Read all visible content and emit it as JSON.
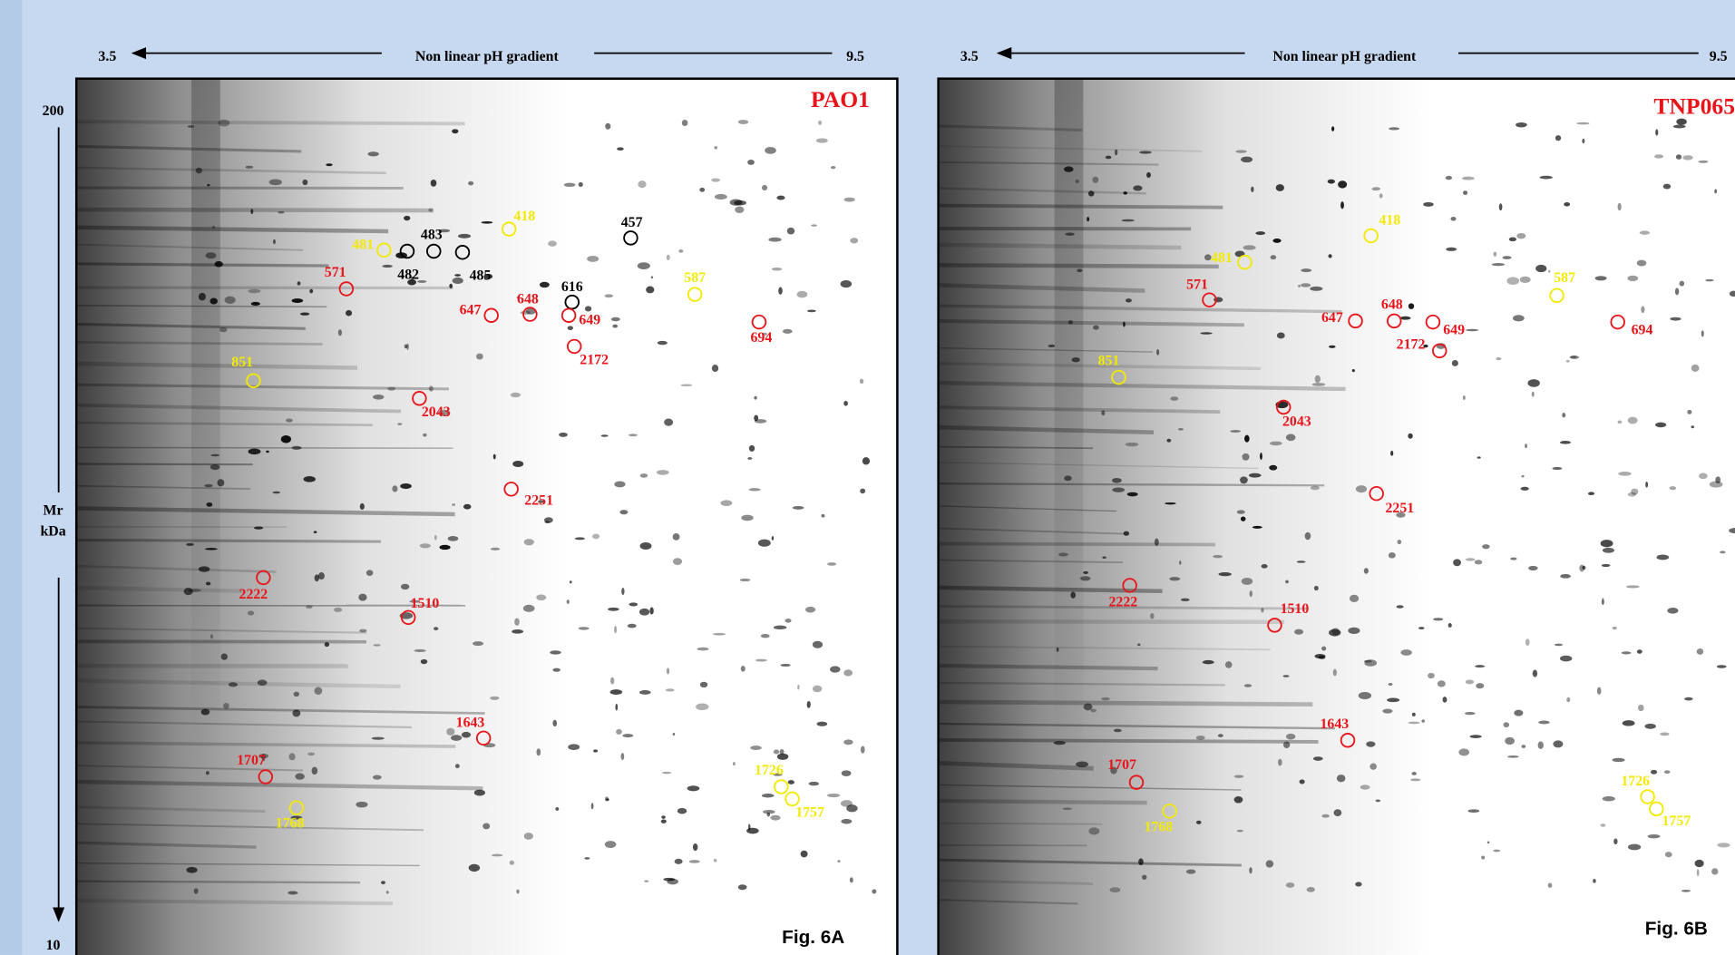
{
  "axis": {
    "mr_top": "200",
    "mr_label": "Mr",
    "kda_label": "kDa",
    "mr_bottom": "10"
  },
  "panels": [
    {
      "ph_left": "3.5",
      "ph_title": "Non linear pH gradient",
      "ph_right": "9.5",
      "strain": "PAO1",
      "figure": "Fig. 6A",
      "spots": [
        {
          "label": "418",
          "color": "#f2ea00"
        },
        {
          "label": "481",
          "color": "#f2ea00"
        },
        {
          "label": "483",
          "color": "#000000"
        },
        {
          "label": "482",
          "color": "#000000"
        },
        {
          "label": "485",
          "color": "#000000"
        },
        {
          "label": "457",
          "color": "#000000"
        },
        {
          "label": "571",
          "color": "#e8141a"
        },
        {
          "label": "616",
          "color": "#000000"
        },
        {
          "label": "648",
          "color": "#e8141a"
        },
        {
          "label": "647",
          "color": "#e8141a"
        },
        {
          "label": "649",
          "color": "#e8141a"
        },
        {
          "label": "587",
          "color": "#f2ea00"
        },
        {
          "label": "694",
          "color": "#e8141a"
        },
        {
          "label": "2172",
          "color": "#e8141a"
        },
        {
          "label": "851",
          "color": "#f2ea00"
        },
        {
          "label": "2043",
          "color": "#e8141a"
        },
        {
          "label": "2251",
          "color": "#e8141a"
        },
        {
          "label": "2222",
          "color": "#e8141a"
        },
        {
          "label": "1510",
          "color": "#e8141a"
        },
        {
          "label": "1643",
          "color": "#e8141a"
        },
        {
          "label": "1707",
          "color": "#e8141a"
        },
        {
          "label": "1768",
          "color": "#f2ea00"
        },
        {
          "label": "1726",
          "color": "#f2ea00"
        },
        {
          "label": "1757",
          "color": "#f2ea00"
        }
      ]
    },
    {
      "ph_left": "3.5",
      "ph_title": "Non linear pH gradient",
      "ph_right": "9.5",
      "strain": "TNP065",
      "figure": "Fig. 6B",
      "spots": [
        {
          "label": "418",
          "color": "#f2ea00"
        },
        {
          "label": "481",
          "color": "#f2ea00"
        },
        {
          "label": "571",
          "color": "#e8141a"
        },
        {
          "label": "648",
          "color": "#e8141a"
        },
        {
          "label": "647",
          "color": "#e8141a"
        },
        {
          "label": "649",
          "color": "#e8141a"
        },
        {
          "label": "2172",
          "color": "#e8141a"
        },
        {
          "label": "587",
          "color": "#f2ea00"
        },
        {
          "label": "694",
          "color": "#e8141a"
        },
        {
          "label": "851",
          "color": "#f2ea00"
        },
        {
          "label": "2043",
          "color": "#e8141a"
        },
        {
          "label": "2251",
          "color": "#e8141a"
        },
        {
          "label": "2222",
          "color": "#e8141a"
        },
        {
          "label": "1510",
          "color": "#e8141a"
        },
        {
          "label": "1643",
          "color": "#e8141a"
        },
        {
          "label": "1707",
          "color": "#e8141a"
        },
        {
          "label": "1768",
          "color": "#f2ea00"
        },
        {
          "label": "1726",
          "color": "#f2ea00"
        },
        {
          "label": "1757",
          "color": "#f2ea00"
        }
      ]
    }
  ]
}
